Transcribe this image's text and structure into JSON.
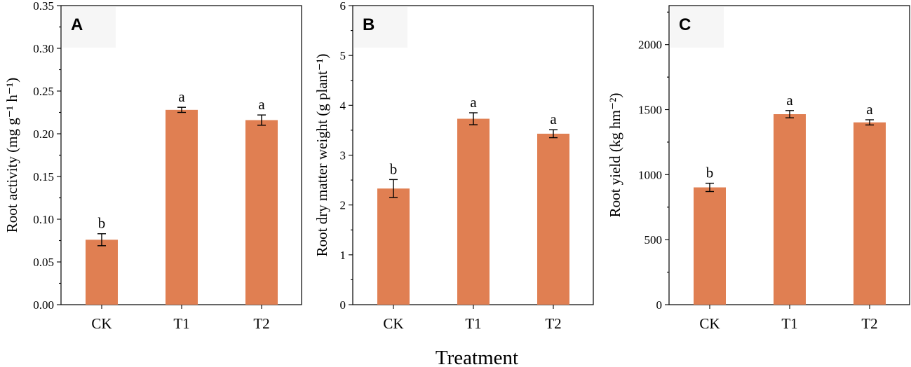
{
  "chart_data": [
    {
      "type": "bar",
      "panel_label": "A",
      "categories": [
        "CK",
        "T1",
        "T2"
      ],
      "values": [
        0.076,
        0.228,
        0.216
      ],
      "errors": [
        0.007,
        0.003,
        0.006
      ],
      "significance": [
        "b",
        "a",
        "a"
      ],
      "ylabel": "Root activity (mg g⁻¹ h⁻¹)",
      "ylim": [
        0,
        0.35
      ],
      "yticks": [
        0.0,
        0.05,
        0.1,
        0.15,
        0.2,
        0.25,
        0.3,
        0.35
      ],
      "ytick_labels": [
        "0.00",
        "0.05",
        "0.10",
        "0.15",
        "0.20",
        "0.25",
        "0.30",
        "0.35"
      ],
      "bar_color": "#e07f52"
    },
    {
      "type": "bar",
      "panel_label": "B",
      "categories": [
        "CK",
        "T1",
        "T2"
      ],
      "values": [
        2.33,
        3.73,
        3.43
      ],
      "errors": [
        0.18,
        0.12,
        0.08
      ],
      "significance": [
        "b",
        "a",
        "a"
      ],
      "ylabel": "Root dry matter weight (g plant⁻¹)",
      "ylim": [
        0,
        6
      ],
      "yticks": [
        0,
        1,
        2,
        3,
        4,
        5,
        6
      ],
      "ytick_labels": [
        "0",
        "1",
        "2",
        "3",
        "4",
        "5",
        "6"
      ],
      "bar_color": "#e07f52"
    },
    {
      "type": "bar",
      "panel_label": "C",
      "categories": [
        "CK",
        "T1",
        "T2"
      ],
      "values": [
        902,
        1465,
        1402
      ],
      "errors": [
        32,
        28,
        20
      ],
      "significance": [
        "b",
        "a",
        "a"
      ],
      "ylabel": "Root yield (kg hm⁻²)",
      "ylim": [
        0,
        2300
      ],
      "yticks": [
        0,
        500,
        1000,
        1500,
        2000
      ],
      "ytick_labels": [
        "0",
        "500",
        "1000",
        "1500",
        "2000"
      ],
      "bar_color": "#e07f52"
    }
  ],
  "xlabel": "Treatment"
}
